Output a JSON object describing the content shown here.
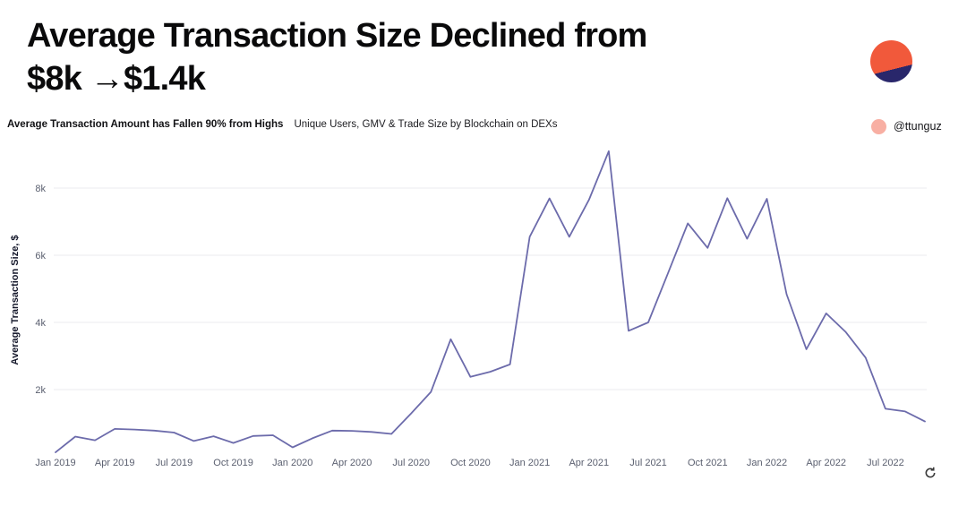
{
  "header": {
    "title_line1": "Average Transaction Size Declined from",
    "title_line2": "$8k →$1.4k",
    "subtitle_bold": "Average Transaction Amount has Fallen 90% from Highs",
    "subtitle_regular": "Unique Users, GMV & Trade Size by Blockchain on DEXs",
    "author_handle": "@ttunguz"
  },
  "colors": {
    "logo_orange": "#f1593b",
    "logo_navy": "#29276b",
    "badge_pink": "#f8afa3",
    "line": "#6c6bab",
    "grid": "#ebebef",
    "tick_text": "#5b6070"
  },
  "icons": {
    "logo": "two-tone-pie-logo-icon",
    "author_dot": "pink-dot-icon",
    "refresh": "refresh-icon"
  },
  "chart_data": {
    "type": "line",
    "title": "",
    "xlabel": "",
    "ylabel": "Average Transaction Size, $",
    "grid": true,
    "legend": "none",
    "ylim": [
      0,
      9350
    ],
    "y_tick_labels": [
      "2k",
      "4k",
      "6k",
      "8k"
    ],
    "y_tick_values": [
      2000,
      4000,
      6000,
      8000
    ],
    "x_tick_labels": [
      "Jan 2019",
      "Apr 2019",
      "Jul 2019",
      "Oct 2019",
      "Jan 2020",
      "Apr 2020",
      "Jul 2020",
      "Oct 2020",
      "Jan 2021",
      "Apr 2021",
      "Jul 2021",
      "Oct 2021",
      "Jan 2022",
      "Apr 2022",
      "Jul 2022"
    ],
    "x": [
      "Jan 2019",
      "Feb 2019",
      "Mar 2019",
      "Apr 2019",
      "May 2019",
      "Jun 2019",
      "Jul 2019",
      "Aug 2019",
      "Sep 2019",
      "Oct 2019",
      "Nov 2019",
      "Dec 2019",
      "Jan 2020",
      "Feb 2020",
      "Mar 2020",
      "Apr 2020",
      "May 2020",
      "Jun 2020",
      "Jul 2020",
      "Aug 2020",
      "Sep 2020",
      "Oct 2020",
      "Nov 2020",
      "Dec 2020",
      "Jan 2021",
      "Feb 2021",
      "Mar 2021",
      "Apr 2021",
      "May 2021",
      "Jun 2021",
      "Jul 2021",
      "Aug 2021",
      "Sep 2021",
      "Oct 2021",
      "Nov 2021",
      "Dec 2021",
      "Jan 2022",
      "Feb 2022",
      "Mar 2022",
      "Apr 2022",
      "May 2022",
      "Jun 2022",
      "Jul 2022",
      "Aug 2022",
      "Sep 2022"
    ],
    "values": [
      130,
      600,
      490,
      830,
      810,
      780,
      720,
      470,
      610,
      410,
      620,
      640,
      280,
      550,
      780,
      770,
      740,
      680,
      1290,
      1930,
      3500,
      2380,
      2530,
      2750,
      6550,
      7690,
      6550,
      7650,
      9100,
      3750,
      4000,
      5470,
      6950,
      6220,
      7700,
      6490,
      7680,
      4840,
      3200,
      4270,
      3710,
      2950,
      1430,
      1350,
      1050
    ]
  }
}
